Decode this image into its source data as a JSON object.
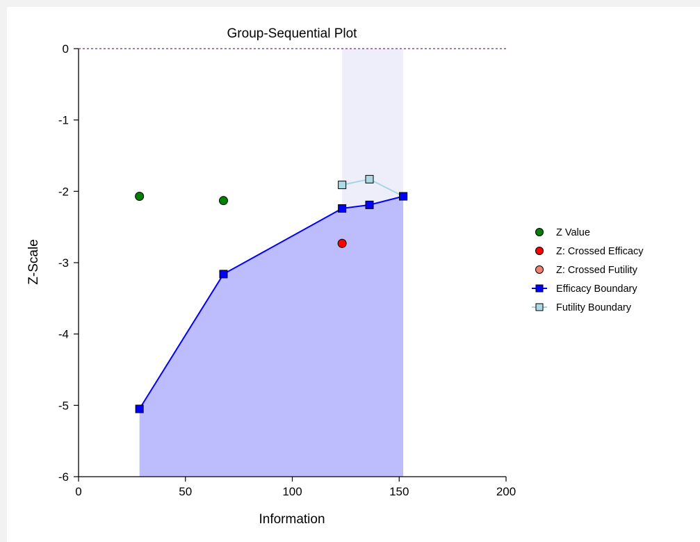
{
  "chart_data": {
    "type": "line",
    "title": "Group-Sequential Plot",
    "xlabel": "Information",
    "ylabel": "Z-Scale",
    "xlim": [
      0,
      200
    ],
    "ylim": [
      -6,
      0
    ],
    "x_ticks": [
      "0",
      "50",
      "100",
      "150",
      "200"
    ],
    "y_ticks": [
      "0",
      "-1",
      "-2",
      "-3",
      "-4",
      "-5",
      "-6"
    ],
    "reference_line_y": 0,
    "colors": {
      "z_value": "#008000",
      "crossed_efficacy": "#ff0000",
      "crossed_futility": "#f08070",
      "efficacy_line": "#0000ff",
      "efficacy_fill": "#bdbdfd",
      "futility_line": "#a5d5e5",
      "futility_marker": "#add8e6",
      "continuation_band": "#eeeefa",
      "reference_line": "#a040a0"
    },
    "series": [
      {
        "name": "Z Value",
        "kind": "points",
        "x": [
          28.5,
          67.8
        ],
        "y": [
          -2.07,
          -2.13
        ]
      },
      {
        "name": "Z: Crossed Efficacy",
        "kind": "points",
        "x": [
          123.3
        ],
        "y": [
          -2.73
        ]
      },
      {
        "name": "Z: Crossed Futility",
        "kind": "points",
        "x": [],
        "y": []
      },
      {
        "name": "Efficacy Boundary",
        "kind": "line",
        "x": [
          28.5,
          67.8,
          123.3,
          136.1,
          151.9
        ],
        "y": [
          -5.05,
          -3.16,
          -2.24,
          -2.19,
          -2.07
        ]
      },
      {
        "name": "Futility Boundary",
        "kind": "line",
        "x": [
          123.3,
          136.1,
          151.9
        ],
        "y": [
          -1.91,
          -1.83,
          -2.07
        ]
      }
    ],
    "legend_position": "right"
  }
}
